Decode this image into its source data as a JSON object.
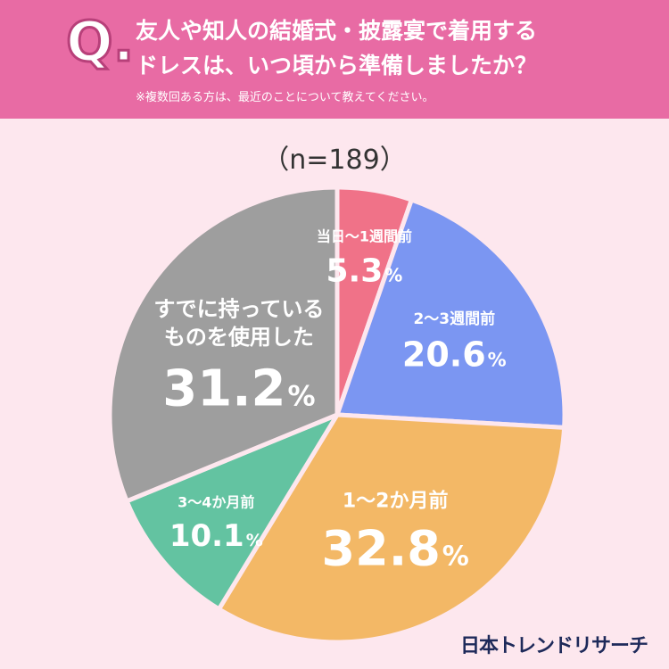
{
  "header": {
    "q_mark": "Q.",
    "line1": "友人や知人の結婚式・披露宴で着用する",
    "line2": "ドレスは、いつ頃から準備しましたか？",
    "note": "※複数回ある方は、最近のことについて教えてください。",
    "bg_color": "#e86ba4"
  },
  "sample_size": "（n=189）",
  "brand": "日本トレンドリサーチ",
  "chart_data": {
    "type": "pie",
    "title": "",
    "unit": "%",
    "start": "top, clockwise",
    "slices": [
      {
        "label": "当日〜1週間前",
        "value": 5.3,
        "color": "#f07288"
      },
      {
        "label": "2〜3週間前",
        "value": 20.6,
        "color": "#7b96f2"
      },
      {
        "label": "1〜2か月前",
        "value": 32.8,
        "color": "#f3b866"
      },
      {
        "label": "3〜4か月前",
        "value": 10.1,
        "color": "#63c3a1"
      },
      {
        "label": "すでに持っている\nものを使用した",
        "value": 31.2,
        "color": "#9e9e9e"
      }
    ]
  }
}
